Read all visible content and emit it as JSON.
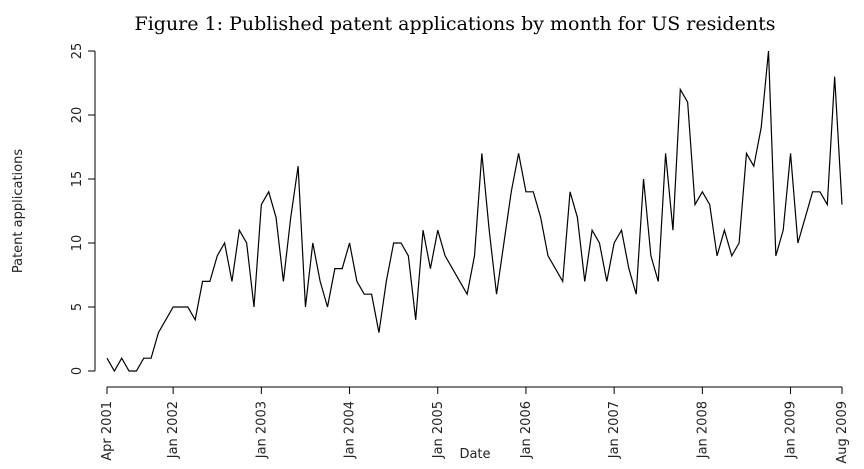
{
  "chart_data": {
    "type": "line",
    "title": "Figure 1: Published patent applications by month for US residents",
    "x_label": "Date",
    "y_label": "Patent applications",
    "color": "#000000",
    "x": [
      "2001-04",
      "2001-05",
      "2001-06",
      "2001-07",
      "2001-08",
      "2001-09",
      "2001-10",
      "2001-11",
      "2001-12",
      "2002-01",
      "2002-02",
      "2002-03",
      "2002-04",
      "2002-05",
      "2002-06",
      "2002-07",
      "2002-08",
      "2002-09",
      "2002-10",
      "2002-11",
      "2002-12",
      "2003-01",
      "2003-02",
      "2003-03",
      "2003-04",
      "2003-05",
      "2003-06",
      "2003-07",
      "2003-08",
      "2003-09",
      "2003-10",
      "2003-11",
      "2003-12",
      "2004-01",
      "2004-02",
      "2004-03",
      "2004-04",
      "2004-05",
      "2004-06",
      "2004-07",
      "2004-08",
      "2004-09",
      "2004-10",
      "2004-11",
      "2004-12",
      "2005-01",
      "2005-02",
      "2005-03",
      "2005-04",
      "2005-05",
      "2005-06",
      "2005-07",
      "2005-08",
      "2005-09",
      "2005-10",
      "2005-11",
      "2005-12",
      "2006-01",
      "2006-02",
      "2006-03",
      "2006-04",
      "2006-05",
      "2006-06",
      "2006-07",
      "2006-08",
      "2006-09",
      "2006-10",
      "2006-11",
      "2006-12",
      "2007-01",
      "2007-02",
      "2007-03",
      "2007-04",
      "2007-05",
      "2007-06",
      "2007-07",
      "2007-08",
      "2007-09",
      "2007-10",
      "2007-11",
      "2007-12",
      "2008-01",
      "2008-02",
      "2008-03",
      "2008-04",
      "2008-05",
      "2008-06",
      "2008-07",
      "2008-08",
      "2008-09",
      "2008-10",
      "2008-11",
      "2008-12",
      "2009-01",
      "2009-02",
      "2009-03",
      "2009-04",
      "2009-05",
      "2009-06",
      "2009-07",
      "2009-08"
    ],
    "values": [
      1,
      0,
      1,
      0,
      0,
      1,
      1,
      3,
      4,
      5,
      5,
      5,
      4,
      7,
      7,
      9,
      10,
      7,
      11,
      10,
      5,
      13,
      14,
      12,
      7,
      12,
      16,
      5,
      10,
      7,
      5,
      8,
      8,
      10,
      7,
      6,
      6,
      3,
      7,
      10,
      10,
      9,
      4,
      11,
      8,
      11,
      9,
      8,
      7,
      6,
      9,
      17,
      11,
      6,
      10,
      14,
      17,
      14,
      14,
      12,
      9,
      8,
      7,
      14,
      12,
      7,
      11,
      10,
      7,
      10,
      11,
      8,
      6,
      15,
      9,
      7,
      17,
      11,
      22,
      21,
      13,
      14,
      13,
      9,
      11,
      9,
      10,
      17,
      16,
      19,
      25,
      9,
      11,
      17,
      10,
      12,
      14,
      14,
      13,
      23,
      13
    ],
    "xlim": [
      "2001-04",
      "2009-08"
    ],
    "xticks": [
      {
        "value": "2001-04",
        "label": "Apr 2001"
      },
      {
        "value": "2002-01",
        "label": "Jan 2002"
      },
      {
        "value": "2003-01",
        "label": "Jan 2003"
      },
      {
        "value": "2004-01",
        "label": "Jan 2004"
      },
      {
        "value": "2005-01",
        "label": "Jan 2005"
      },
      {
        "value": "2006-01",
        "label": "Jan 2006"
      },
      {
        "value": "2007-01",
        "label": "Jan 2007"
      },
      {
        "value": "2008-01",
        "label": "Jan 2008"
      },
      {
        "value": "2009-01",
        "label": "Jan 2009"
      },
      {
        "value": "2009-08",
        "label": "Aug 2009"
      }
    ],
    "ylim": [
      0,
      25
    ],
    "yticks": [
      0,
      5,
      10,
      15,
      20,
      25
    ],
    "grid": false
  }
}
